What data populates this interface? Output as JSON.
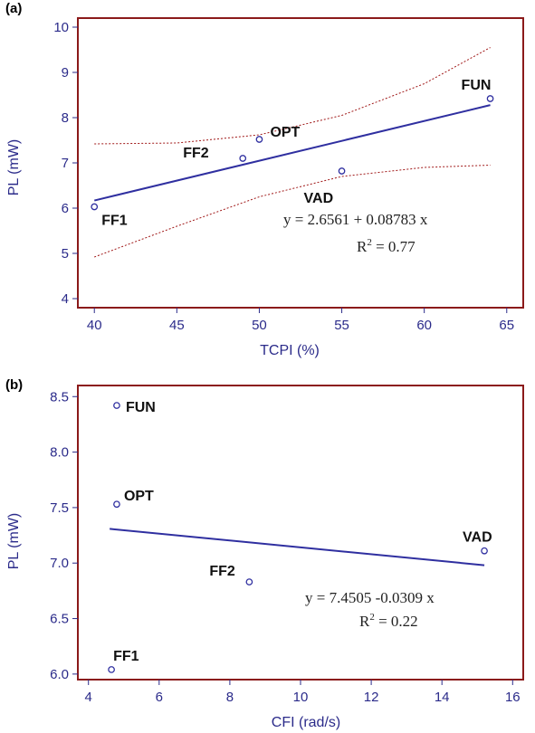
{
  "colors": {
    "frame": "#8b1a1a",
    "axis_text": "#2b2b8a",
    "fit_line": "#2f2fa0",
    "ci_line": "#a01818",
    "marker": "#2f2fa0"
  },
  "chart_data": [
    {
      "panel_label": "(a)",
      "type": "scatter",
      "xlabel": "TCPI (%)",
      "ylabel": "PL (mW)",
      "xlim": [
        39,
        66
      ],
      "ylim": [
        3.8,
        10.2
      ],
      "xticks": [
        "40",
        "45",
        "50",
        "55",
        "60",
        "65"
      ],
      "yticks": [
        "4",
        "5",
        "6",
        "7",
        "8",
        "9",
        "10"
      ],
      "points": [
        {
          "label": "FF1",
          "x": 40,
          "y": 6.03
        },
        {
          "label": "FF2",
          "x": 49,
          "y": 7.1
        },
        {
          "label": "OPT",
          "x": 50,
          "y": 7.52
        },
        {
          "label": "VAD",
          "x": 55,
          "y": 6.82
        },
        {
          "label": "FUN",
          "x": 64,
          "y": 8.42
        }
      ],
      "fit": {
        "intercept": 2.6561,
        "slope": 0.08783,
        "x_range": [
          40,
          64
        ]
      },
      "ci_upper": [
        [
          40,
          7.42
        ],
        [
          45,
          7.44
        ],
        [
          50,
          7.62
        ],
        [
          55,
          8.05
        ],
        [
          60,
          8.75
        ],
        [
          64,
          9.55
        ]
      ],
      "ci_lower": [
        [
          40,
          4.92
        ],
        [
          45,
          5.6
        ],
        [
          50,
          6.25
        ],
        [
          55,
          6.7
        ],
        [
          60,
          6.9
        ],
        [
          64,
          6.95
        ]
      ],
      "equation": "y = 2.6561 + 0.08783 x",
      "r2_prefix": "R",
      "r2_sup": "2",
      "r2_value": " = 0.77"
    },
    {
      "panel_label": "(b)",
      "type": "scatter",
      "xlabel": "CFI (rad/s)",
      "ylabel": "PL (mW)",
      "xlim": [
        3.7,
        16.3
      ],
      "ylim": [
        5.95,
        8.6
      ],
      "xticks": [
        "4",
        "6",
        "8",
        "10",
        "12",
        "14",
        "16"
      ],
      "yticks": [
        "6.0",
        "6.5",
        "7.0",
        "7.5",
        "8.0",
        "8.5"
      ],
      "points": [
        {
          "label": "FUN",
          "x": 4.8,
          "y": 8.42
        },
        {
          "label": "OPT",
          "x": 4.8,
          "y": 7.53
        },
        {
          "label": "FF1",
          "x": 4.65,
          "y": 6.04
        },
        {
          "label": "FF2",
          "x": 8.55,
          "y": 6.83
        },
        {
          "label": "VAD",
          "x": 15.2,
          "y": 7.11
        }
      ],
      "fit": {
        "intercept": 7.4505,
        "slope": -0.0309,
        "x_range": [
          4.6,
          15.2
        ]
      },
      "equation": "y = 7.4505 -0.0309 x",
      "r2_prefix": "R",
      "r2_sup": "2",
      "r2_value": " = 0.22"
    }
  ]
}
